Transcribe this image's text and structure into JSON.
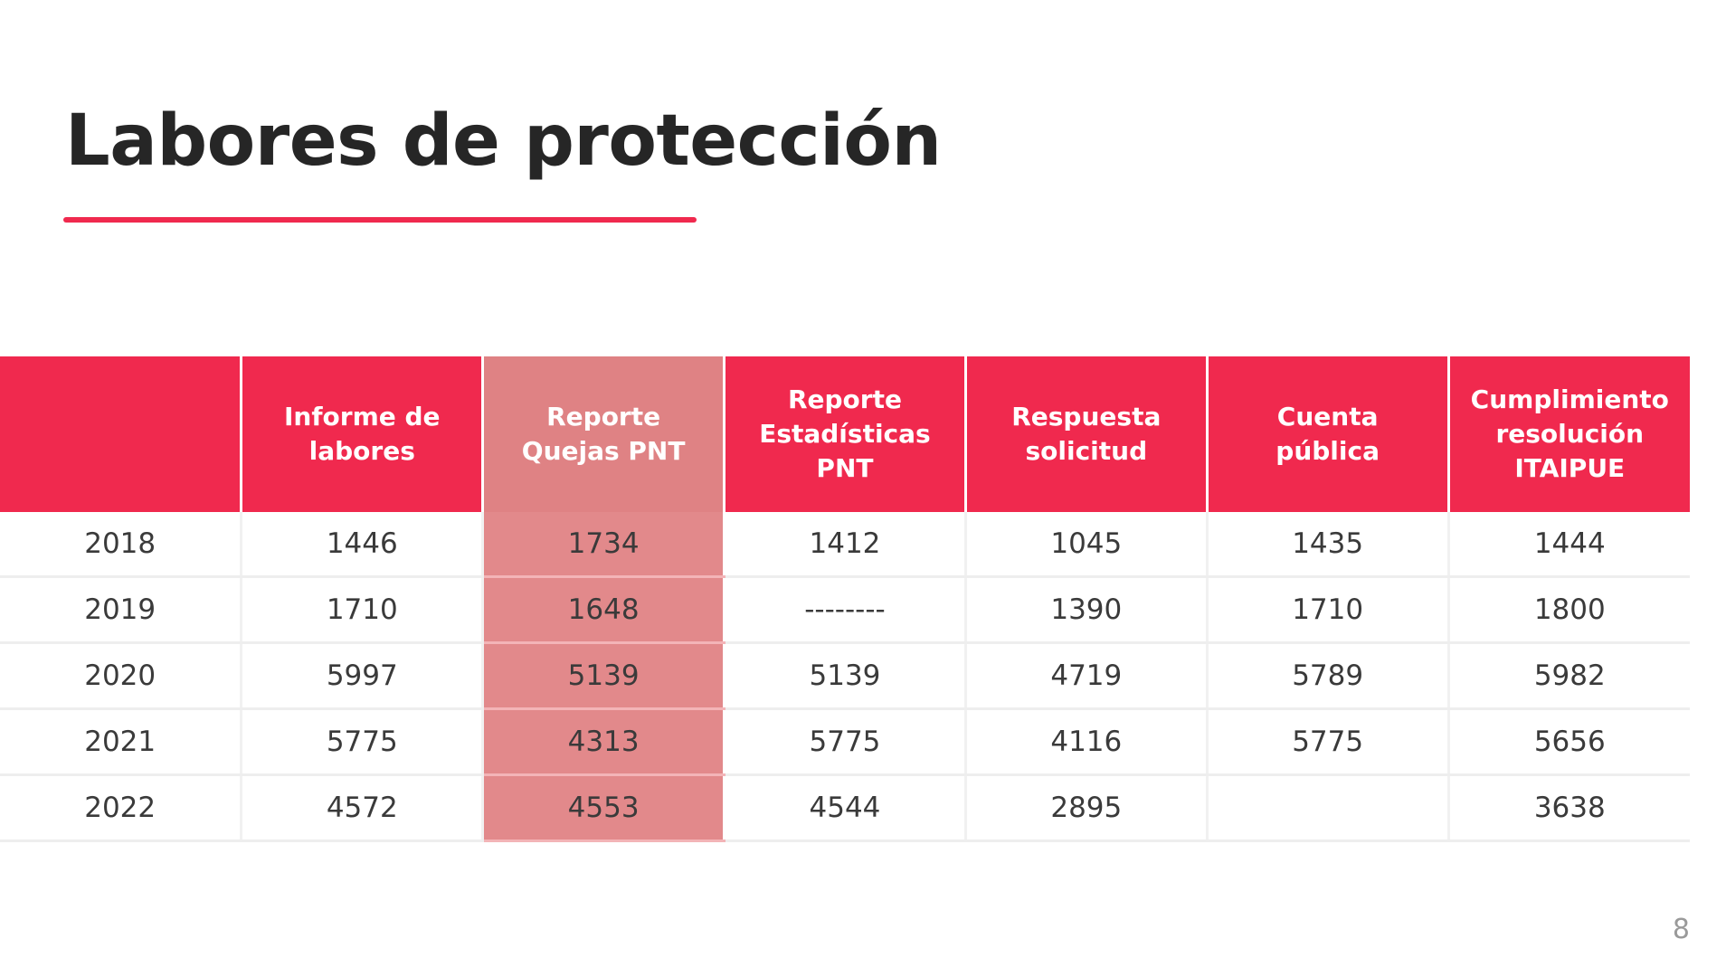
{
  "slide": {
    "title": "Labores de protección",
    "page_number": "8"
  },
  "colors": {
    "accent": "#f0294e",
    "highlight_header": "#df8284",
    "highlight_cell": "#e2898b",
    "text": "#262626"
  },
  "table": {
    "headers": [
      "",
      "Informe de\nlabores",
      "Reporte\nQuejas PNT",
      "Reporte\nEstadísticas\nPNT",
      "Respuesta\nsolicitud",
      "Cuenta\npública",
      "Cumplimiento\nresolución\nITAIPUE"
    ],
    "highlighted_column": 2,
    "rows": [
      [
        "2018",
        "1446",
        "1734",
        "1412",
        "1045",
        "1435",
        "1444"
      ],
      [
        "2019",
        "1710",
        "1648",
        "--------",
        "1390",
        "1710",
        "1800"
      ],
      [
        "2020",
        "5997",
        "5139",
        "5139",
        "4719",
        "5789",
        "5982"
      ],
      [
        "2021",
        "5775",
        "4313",
        "5775",
        "4116",
        "5775",
        "5656"
      ],
      [
        "2022",
        "4572",
        "4553",
        "4544",
        "2895",
        "",
        "3638"
      ]
    ]
  }
}
